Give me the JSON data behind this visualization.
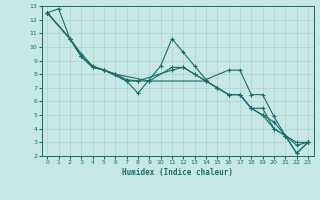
{
  "xlabel": "Humidex (Indice chaleur)",
  "background_color": "#c8e8e8",
  "grid_color": "#b0d0d0",
  "line_color": "#1a6b6b",
  "xlim": [
    -0.5,
    23.5
  ],
  "ylim": [
    2,
    13
  ],
  "xticks": [
    0,
    1,
    2,
    3,
    4,
    5,
    6,
    7,
    8,
    9,
    10,
    11,
    12,
    13,
    14,
    15,
    16,
    17,
    18,
    19,
    20,
    21,
    22,
    23
  ],
  "yticks": [
    2,
    3,
    4,
    5,
    6,
    7,
    8,
    9,
    10,
    11,
    12,
    13
  ],
  "lines": [
    {
      "x": [
        0,
        1,
        2,
        3,
        4,
        5,
        7,
        8,
        10,
        11,
        12,
        13,
        14,
        16,
        17,
        18,
        19,
        20,
        21,
        22,
        23
      ],
      "y": [
        12.5,
        12.8,
        10.6,
        9.3,
        8.5,
        8.3,
        7.5,
        6.6,
        8.6,
        10.6,
        9.6,
        8.6,
        7.6,
        8.3,
        8.3,
        6.5,
        6.5,
        4.9,
        3.5,
        2.2,
        3.0
      ]
    },
    {
      "x": [
        0,
        2,
        3,
        4,
        5,
        6,
        7,
        8,
        9,
        11,
        12,
        13,
        14,
        15,
        16,
        17,
        18,
        19,
        20,
        21,
        22,
        23
      ],
      "y": [
        12.5,
        10.6,
        9.3,
        8.6,
        8.3,
        8.0,
        7.5,
        7.5,
        7.5,
        8.5,
        8.5,
        8.0,
        7.5,
        7.0,
        6.5,
        6.5,
        5.5,
        5.5,
        4.0,
        3.5,
        3.0,
        3.0
      ]
    },
    {
      "x": [
        0,
        2,
        3,
        4,
        5,
        6,
        7,
        8,
        11,
        12,
        13,
        14,
        15,
        16,
        17,
        18,
        19,
        20,
        21,
        22,
        23
      ],
      "y": [
        12.5,
        10.6,
        9.5,
        8.6,
        8.3,
        8.0,
        7.6,
        7.5,
        8.3,
        8.5,
        8.0,
        7.5,
        7.0,
        6.5,
        6.5,
        5.5,
        5.0,
        4.0,
        3.5,
        2.8,
        3.0
      ]
    },
    {
      "x": [
        0,
        2,
        3,
        4,
        5,
        6,
        9,
        14,
        15,
        16,
        17,
        18,
        19,
        20,
        21,
        22,
        23
      ],
      "y": [
        12.5,
        10.6,
        9.3,
        8.5,
        8.3,
        8.0,
        7.5,
        7.5,
        7.0,
        6.5,
        6.5,
        5.5,
        5.0,
        4.5,
        3.5,
        2.2,
        3.0
      ]
    }
  ]
}
